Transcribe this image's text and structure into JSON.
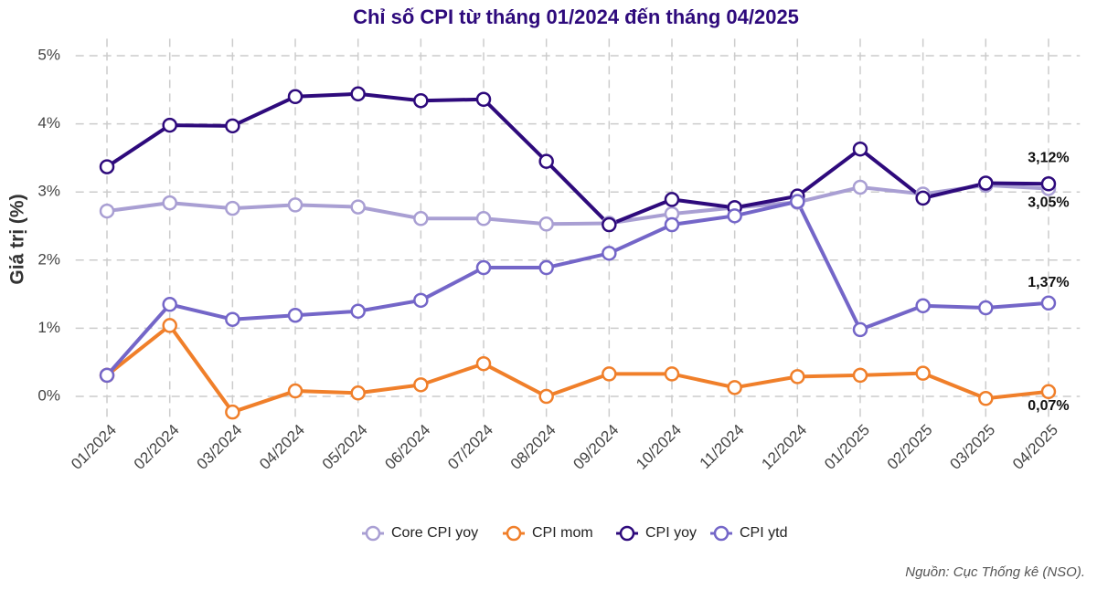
{
  "chart_data": {
    "type": "line",
    "title": "Chỉ số CPI từ tháng 01/2024 đến tháng 04/2025",
    "y_label": "Giá trị (%)",
    "source": "Nguồn: Cục Thống kê (NSO).",
    "categories": [
      "01/2024",
      "02/2024",
      "03/2024",
      "04/2024",
      "05/2024",
      "06/2024",
      "07/2024",
      "08/2024",
      "09/2024",
      "10/2024",
      "11/2024",
      "12/2024",
      "01/2025",
      "02/2025",
      "03/2025",
      "04/2025"
    ],
    "series": [
      {
        "name": "Core CPI yoy",
        "color": "#a99fd3",
        "values": [
          2.72,
          2.84,
          2.76,
          2.81,
          2.78,
          2.61,
          2.61,
          2.53,
          2.54,
          2.68,
          2.77,
          2.85,
          3.07,
          2.97,
          3.1,
          3.05
        ],
        "value_labels": [
          null,
          null,
          null,
          null,
          null,
          null,
          null,
          null,
          null,
          null,
          null,
          null,
          null,
          null,
          null,
          "3,05%"
        ]
      },
      {
        "name": "CPI mom",
        "color": "#f07f2a",
        "values": [
          0.31,
          1.04,
          -0.23,
          0.08,
          0.05,
          0.17,
          0.48,
          0,
          0.33,
          0.33,
          0.13,
          0.29,
          0.31,
          0.34,
          -0.03,
          0.07
        ],
        "value_labels": [
          null,
          null,
          null,
          null,
          null,
          null,
          null,
          null,
          null,
          null,
          null,
          null,
          null,
          null,
          null,
          "0,07%"
        ]
      },
      {
        "name": "CPI yoy",
        "color": "#2e0a7c",
        "values": [
          3.37,
          3.98,
          3.97,
          4.4,
          4.44,
          4.34,
          4.36,
          3.45,
          2.52,
          2.89,
          2.77,
          2.94,
          3.63,
          2.91,
          3.13,
          3.12
        ],
        "value_labels": [
          null,
          null,
          null,
          null,
          null,
          null,
          null,
          null,
          null,
          null,
          null,
          null,
          null,
          null,
          null,
          "3,12%"
        ]
      },
      {
        "name": "CPI ytd",
        "color": "#7466c8",
        "values": [
          0.31,
          1.35,
          1.13,
          1.19,
          1.25,
          1.41,
          1.89,
          1.89,
          2.1,
          2.52,
          2.65,
          2.86,
          0.98,
          1.33,
          1.3,
          1.37
        ],
        "value_labels": [
          null,
          null,
          null,
          null,
          null,
          null,
          null,
          null,
          null,
          null,
          null,
          null,
          null,
          null,
          null,
          "1,37%"
        ]
      }
    ],
    "ylim": [
      -0.3,
      5.25
    ],
    "yticks": [
      {
        "value": 0,
        "label": "0%"
      },
      {
        "value": 1,
        "label": "1%"
      },
      {
        "value": 2,
        "label": "2%"
      },
      {
        "value": 3,
        "label": "3%"
      },
      {
        "value": 4,
        "label": "4%"
      },
      {
        "value": 5,
        "label": "5%"
      }
    ],
    "grid": true,
    "legend": "bottom"
  }
}
